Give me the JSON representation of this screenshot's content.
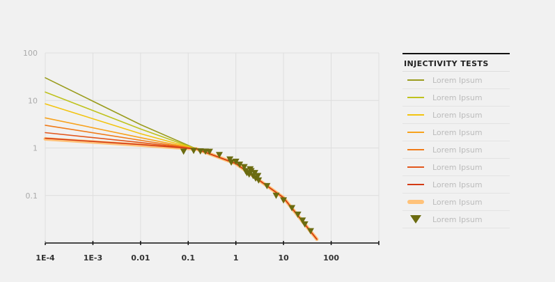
{
  "chart_data": {
    "type": "line",
    "x_scale": "log",
    "y_scale": "log",
    "xlim": [
      0.0001,
      1000
    ],
    "ylim": [
      0.01,
      100
    ],
    "x_ticks": [
      "1E-4",
      "1E-3",
      "0.01",
      "0.1",
      "1",
      "10",
      "100"
    ],
    "y_ticks": [
      "100",
      "10",
      "1",
      "0.1"
    ],
    "grid": true,
    "legend_position": "right",
    "legend_title": "INJECTIVITY TESTS",
    "series": [
      {
        "label": "Lorem Ipsum",
        "color": "#9a9c1d",
        "points": [
          [
            0.0001,
            30
          ],
          [
            0.01,
            3.1
          ],
          [
            0.15,
            0.95
          ],
          [
            1,
            0.47
          ],
          [
            10,
            0.09
          ],
          [
            50,
            0.012
          ]
        ]
      },
      {
        "label": "Lorem Ipsum",
        "color": "#bfc21d",
        "points": [
          [
            0.0001,
            15
          ],
          [
            0.01,
            2.5
          ],
          [
            0.15,
            0.95
          ],
          [
            1,
            0.47
          ],
          [
            10,
            0.09
          ],
          [
            50,
            0.012
          ]
        ]
      },
      {
        "label": "Lorem Ipsum",
        "color": "#f2c40f",
        "points": [
          [
            0.0001,
            8.5
          ],
          [
            0.01,
            2.0
          ],
          [
            0.15,
            0.95
          ],
          [
            1,
            0.47
          ],
          [
            10,
            0.09
          ],
          [
            50,
            0.012
          ]
        ]
      },
      {
        "label": "Lorem Ipsum",
        "color": "#f7a21d",
        "points": [
          [
            0.0001,
            4.3
          ],
          [
            0.01,
            1.65
          ],
          [
            0.15,
            0.95
          ],
          [
            1,
            0.47
          ],
          [
            10,
            0.09
          ],
          [
            50,
            0.012
          ]
        ]
      },
      {
        "label": "Lorem Ipsum",
        "color": "#f07a18",
        "points": [
          [
            0.0001,
            3.0
          ],
          [
            0.01,
            1.45
          ],
          [
            0.15,
            0.95
          ],
          [
            1,
            0.47
          ],
          [
            10,
            0.09
          ],
          [
            50,
            0.012
          ]
        ]
      },
      {
        "label": "Lorem Ipsum",
        "color": "#e2561b",
        "points": [
          [
            0.0001,
            2.1
          ],
          [
            0.01,
            1.3
          ],
          [
            0.15,
            0.95
          ],
          [
            1,
            0.47
          ],
          [
            10,
            0.09
          ],
          [
            50,
            0.012
          ]
        ]
      },
      {
        "label": "Lorem Ipsum",
        "color": "#d33a14",
        "points": [
          [
            0.0001,
            1.6
          ],
          [
            0.01,
            1.18
          ],
          [
            0.15,
            0.95
          ],
          [
            1,
            0.47
          ],
          [
            10,
            0.09
          ],
          [
            50,
            0.012
          ]
        ]
      },
      {
        "label": "Lorem Ipsum",
        "color": "#ffc27a",
        "thick": true,
        "points": [
          [
            0.0001,
            1.55
          ],
          [
            0.01,
            1.15
          ],
          [
            0.15,
            0.95
          ],
          [
            1,
            0.47
          ],
          [
            10,
            0.09
          ],
          [
            50,
            0.012
          ]
        ]
      }
    ],
    "markers": {
      "label": "Lorem Ipsum",
      "color": "#6b6b10",
      "points": [
        [
          0.08,
          0.85
        ],
        [
          0.13,
          0.88
        ],
        [
          0.18,
          0.86
        ],
        [
          0.23,
          0.85
        ],
        [
          0.28,
          0.84
        ],
        [
          0.45,
          0.72
        ],
        [
          0.75,
          0.58
        ],
        [
          0.8,
          0.5
        ],
        [
          1.0,
          0.52
        ],
        [
          1.2,
          0.45
        ],
        [
          1.5,
          0.4
        ],
        [
          1.6,
          0.33
        ],
        [
          1.7,
          0.3
        ],
        [
          1.9,
          0.28
        ],
        [
          2.0,
          0.36
        ],
        [
          2.1,
          0.33
        ],
        [
          2.3,
          0.26
        ],
        [
          2.5,
          0.3
        ],
        [
          2.6,
          0.23
        ],
        [
          2.9,
          0.26
        ],
        [
          3.0,
          0.21
        ],
        [
          4.5,
          0.16
        ],
        [
          7.0,
          0.1
        ],
        [
          10,
          0.08
        ],
        [
          15,
          0.055
        ],
        [
          20,
          0.04
        ],
        [
          25,
          0.03
        ],
        [
          28,
          0.025
        ],
        [
          37,
          0.018
        ]
      ]
    }
  }
}
